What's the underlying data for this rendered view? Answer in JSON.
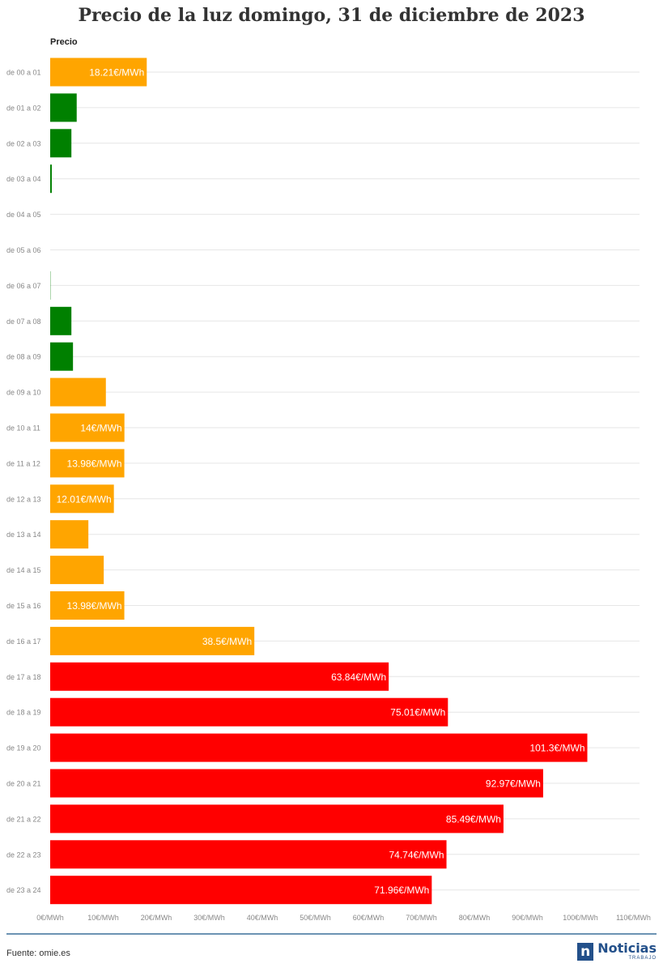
{
  "title": "Precio de la luz domingo, 31 de diciembre de 2023",
  "source": "Fuente: omie.es",
  "logo": {
    "main": "Noticias",
    "sub": "TRABAJO",
    "mark": "n"
  },
  "colors": {
    "orange": "#FFA500",
    "green": "#008000",
    "red": "#FF0000",
    "grid": "#e6e6e6",
    "axis_label": "#888888",
    "footer_rule": "#6c93b3"
  },
  "chart_data": {
    "type": "bar",
    "orientation": "horizontal",
    "legend_title": "Precio",
    "categories": [
      "de 00 a 01",
      "de 01 a 02",
      "de 02 a 03",
      "de 03 a 04",
      "de 04 a 05",
      "de 05 a 06",
      "de 06 a 07",
      "de 07 a 08",
      "de 08 a 09",
      "de 09 a 10",
      "de 10 a 11",
      "de 11 a 12",
      "de 12 a 13",
      "de 13 a 14",
      "de 14 a 15",
      "de 15 a 16",
      "de 16 a 17",
      "de 17 a 18",
      "de 18 a 19",
      "de 19 a 20",
      "de 20 a 21",
      "de 21 a 22",
      "de 22 a 23",
      "de 23 a 24"
    ],
    "values": [
      18.21,
      5.0,
      4.0,
      0.3,
      0,
      0,
      0.05,
      4.0,
      4.3,
      10.5,
      14,
      13.98,
      12.01,
      7.2,
      10.1,
      13.98,
      38.5,
      63.84,
      75.01,
      101.3,
      92.97,
      85.49,
      74.74,
      71.96
    ],
    "bar_colors": [
      "orange",
      "green",
      "green",
      "green",
      "green",
      "green",
      "green",
      "green",
      "green",
      "orange",
      "orange",
      "orange",
      "orange",
      "orange",
      "orange",
      "orange",
      "orange",
      "red",
      "red",
      "red",
      "red",
      "red",
      "red",
      "red"
    ],
    "data_labels": [
      "18.21€/MWh",
      "",
      "",
      "",
      "",
      "",
      "",
      "",
      "",
      "",
      "14€/MWh",
      "13.98€/MWh",
      "12.01€/MWh",
      "",
      "",
      "13.98€/MWh",
      "38.5€/MWh",
      "63.84€/MWh",
      "75.01€/MWh",
      "101.3€/MWh",
      "92.97€/MWh",
      "85.49€/MWh",
      "74.74€/MWh",
      "71.96€/MWh"
    ],
    "x_ticks": [
      0,
      10,
      20,
      30,
      40,
      50,
      60,
      70,
      80,
      90,
      100,
      110
    ],
    "x_tick_labels": [
      "0€/MWh",
      "10€/MWh",
      "20€/MWh",
      "30€/MWh",
      "40€/MWh",
      "50€/MWh",
      "60€/MWh",
      "70€/MWh",
      "80€/MWh",
      "90€/MWh",
      "100€/MWh",
      "110€/MWh"
    ],
    "xlim": [
      0,
      110
    ],
    "grid": true
  }
}
